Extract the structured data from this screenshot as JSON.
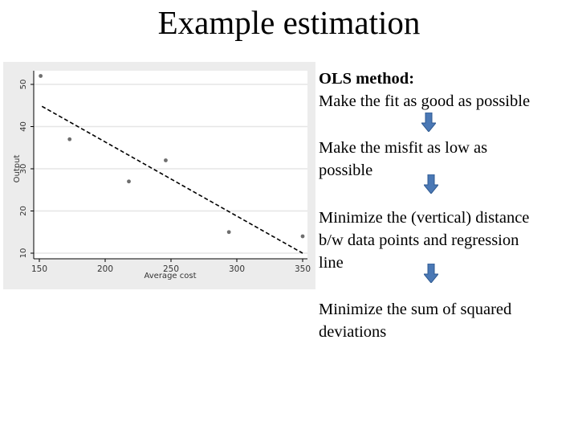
{
  "slide": {
    "title": "Example estimation"
  },
  "text_panel": {
    "heading": "OLS method:",
    "lines": [
      "Make the fit as good as possible",
      "Make the misfit as low as",
      "possible",
      "Minimize the (vertical) distance",
      "b/w data points and regression",
      "line",
      "Minimize the sum of squared",
      "deviations"
    ],
    "arrow_icon": "down-arrow-icon",
    "arrow_color": "#4a78b5",
    "arrow_border": "#2f5a91"
  },
  "chart_data": {
    "type": "scatter",
    "title": "",
    "xlabel": "Average cost",
    "ylabel": "Output",
    "xlim": [
      150,
      350
    ],
    "ylim": [
      10,
      52
    ],
    "x_ticks": [
      150,
      200,
      250,
      300,
      350
    ],
    "y_ticks": [
      10,
      20,
      30,
      40,
      50
    ],
    "grid": "horizontal",
    "legend": null,
    "series": [
      {
        "name": "Observations",
        "kind": "scatter",
        "color": "#6e6e6e",
        "points": [
          {
            "x": 151,
            "y": 52
          },
          {
            "x": 173,
            "y": 37
          },
          {
            "x": 218,
            "y": 27
          },
          {
            "x": 246,
            "y": 32
          },
          {
            "x": 294,
            "y": 15
          },
          {
            "x": 350,
            "y": 14
          }
        ]
      },
      {
        "name": "Fitted regression line",
        "kind": "line",
        "style": "dashed",
        "color": "#000000",
        "points": [
          {
            "x": 152,
            "y": 44.8
          },
          {
            "x": 350,
            "y": 10
          }
        ]
      }
    ],
    "colors": {
      "panel_background": "#ececec",
      "plot_background": "#ffffff",
      "gridline": "#e6e6e6"
    }
  }
}
